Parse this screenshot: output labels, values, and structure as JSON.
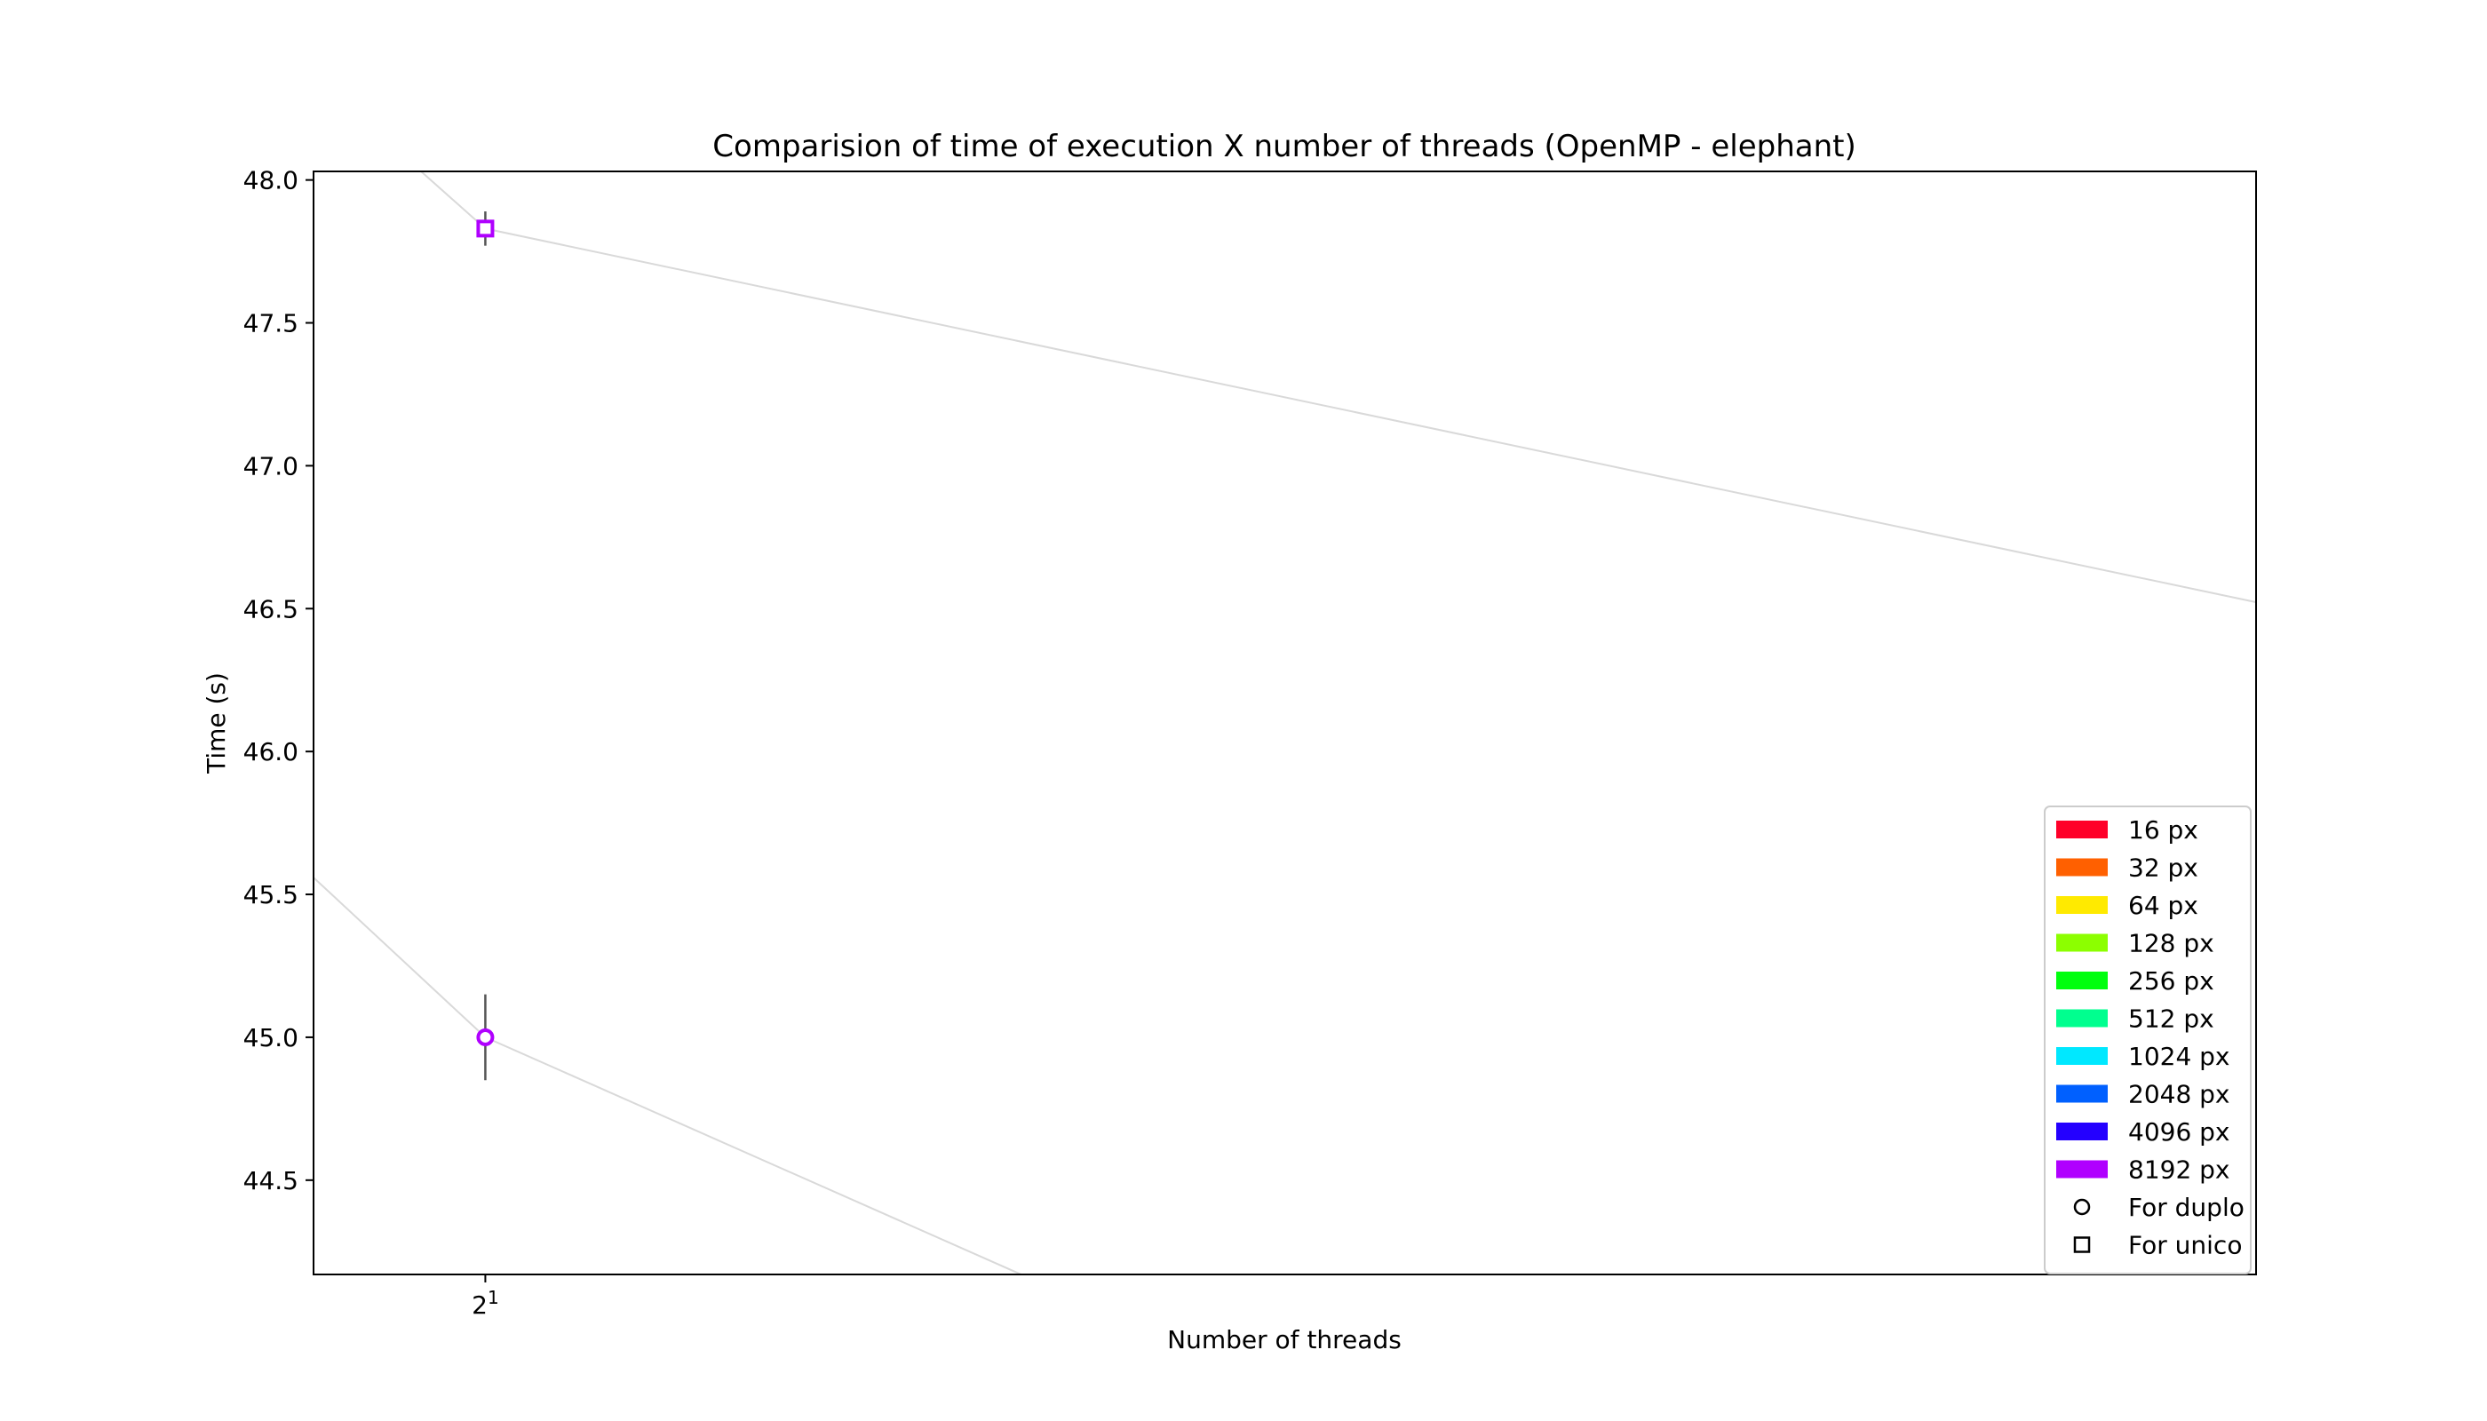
{
  "chart_data": {
    "type": "scatter",
    "title": "Comparision of time of execution X number of threads (OpenMP - elephant)",
    "xlabel": "Number of threads",
    "ylabel": "Time (s)",
    "x_scale": "log2",
    "x_ticks": [
      {
        "value": 2,
        "base": "2",
        "exp": "1"
      }
    ],
    "xlim": [
      1.15,
      600
    ],
    "ylim": [
      44.17,
      48.03
    ],
    "y_ticks": [
      {
        "value": 44.5,
        "label": "44.5"
      },
      {
        "value": 45.0,
        "label": "45.0"
      },
      {
        "value": 45.5,
        "label": "45.5"
      },
      {
        "value": 46.0,
        "label": "46.0"
      },
      {
        "value": 46.5,
        "label": "46.5"
      },
      {
        "value": 47.0,
        "label": "47.0"
      },
      {
        "value": 47.5,
        "label": "47.5"
      },
      {
        "value": 48.0,
        "label": "48.0"
      }
    ],
    "grid": false,
    "legend_position": "lower right",
    "series": [
      {
        "name": "8192 px",
        "variant": "For duplo",
        "marker": "circle",
        "color": "#b000ff",
        "points": [
          {
            "x": 2,
            "y": 45.0,
            "err": 0.15
          }
        ],
        "trend": [
          {
            "x": 1,
            "y": 45.7
          },
          {
            "x": 2,
            "y": 45.0
          },
          {
            "x": 16,
            "y": 44.0
          }
        ]
      },
      {
        "name": "8192 px",
        "variant": "For unico",
        "marker": "square",
        "color": "#b000ff",
        "points": [
          {
            "x": 2,
            "y": 47.83,
            "err": 0.06
          }
        ],
        "trend": [
          {
            "x": 1,
            "y": 48.5
          },
          {
            "x": 2,
            "y": 47.83
          },
          {
            "x": 1024,
            "y": 46.4
          }
        ]
      }
    ],
    "legend": [
      {
        "label": "16 px",
        "color": "#ff0029",
        "kind": "patch"
      },
      {
        "label": "32 px",
        "color": "#ff6000",
        "kind": "patch"
      },
      {
        "label": "64 px",
        "color": "#ffea00",
        "kind": "patch"
      },
      {
        "label": "128 px",
        "color": "#8cff00",
        "kind": "patch"
      },
      {
        "label": "256 px",
        "color": "#00ff0e",
        "kind": "patch"
      },
      {
        "label": "512 px",
        "color": "#00ff8f",
        "kind": "patch"
      },
      {
        "label": "1024 px",
        "color": "#00e8ff",
        "kind": "patch"
      },
      {
        "label": "2048 px",
        "color": "#0060ff",
        "kind": "patch"
      },
      {
        "label": "4096 px",
        "color": "#2400ff",
        "kind": "patch"
      },
      {
        "label": "8192 px",
        "color": "#b000ff",
        "kind": "patch"
      },
      {
        "label": "For duplo",
        "color": "#000000",
        "kind": "circle"
      },
      {
        "label": "For unico",
        "color": "#000000",
        "kind": "square"
      }
    ]
  }
}
